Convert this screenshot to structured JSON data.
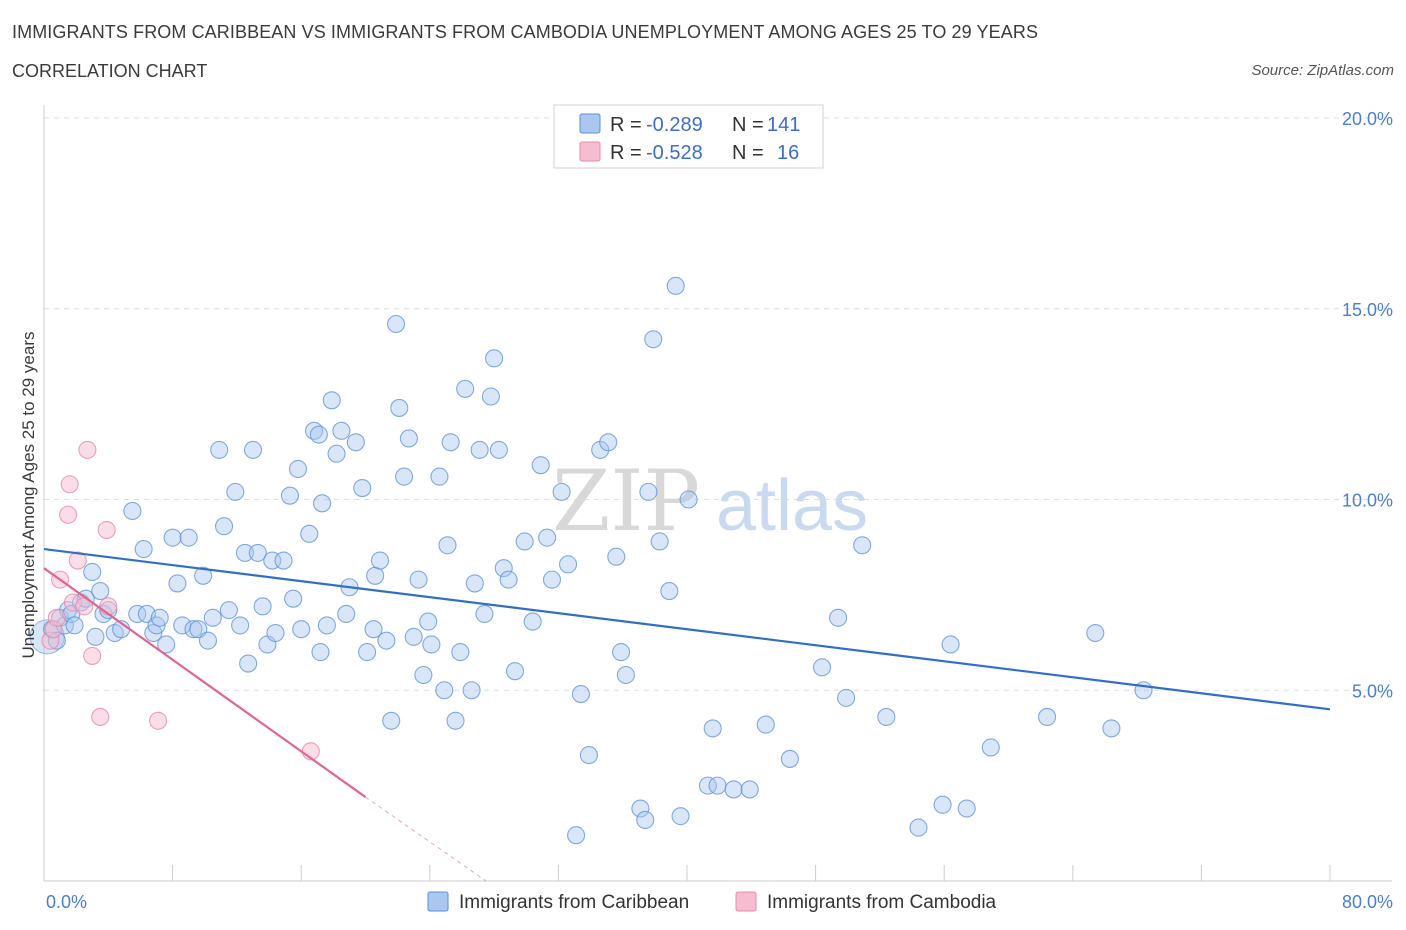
{
  "header": {
    "title": "IMMIGRANTS FROM CARIBBEAN VS IMMIGRANTS FROM CAMBODIA UNEMPLOYMENT AMONG AGES 25 TO 29 YEARS",
    "subtitle": "CORRELATION CHART",
    "source": "Source: ZipAtlas.com"
  },
  "watermark": {
    "zip": "ZIP",
    "atlas": "atlas"
  },
  "colors": {
    "caribbean_fill": "#a9c7ef",
    "caribbean_stroke": "#5b8fd6",
    "caribbean_line": "#2f6fc9",
    "cambodia_fill": "#f6bcd0",
    "cambodia_stroke": "#e88aa8",
    "cambodia_line": "#e0668f",
    "grid": "#dddddd",
    "axis_label": "#4a7fcf"
  },
  "legend": {
    "rows": [
      {
        "r_label": "R = ",
        "r_value": "-0.289",
        "n_label": "N = ",
        "n_value": "141"
      },
      {
        "r_label": "R = ",
        "r_value": "-0.528",
        "n_label": "N = ",
        "n_value": "16"
      }
    ]
  },
  "bottom_legend": {
    "items": [
      {
        "label": "Immigrants from Caribbean"
      },
      {
        "label": "Immigrants from Cambodia"
      }
    ]
  },
  "chart_data": {
    "type": "scatter",
    "title": "IMMIGRANTS FROM CARIBBEAN VS IMMIGRANTS FROM CAMBODIA UNEMPLOYMENT AMONG AGES 25 TO 29 YEARS",
    "xlabel": "",
    "ylabel": "Unemployment Among Ages 25 to 29 years",
    "xlim": [
      0,
      80
    ],
    "ylim": [
      0,
      20
    ],
    "x_tick_labels": [
      "0.0%",
      "80.0%"
    ],
    "y_ticks": [
      5,
      10,
      15,
      20
    ],
    "y_tick_labels": [
      "5.0%",
      "10.0%",
      "15.0%",
      "20.0%"
    ],
    "grid": true,
    "legend_position": "top-center",
    "series": [
      {
        "name": "Immigrants from Caribbean",
        "R": -0.289,
        "N": 141,
        "trend": {
          "x": [
            0,
            80
          ],
          "y": [
            8.7,
            4.5
          ]
        },
        "points": [
          [
            0.5,
            6.6
          ],
          [
            0.8,
            6.3
          ],
          [
            1.0,
            6.9
          ],
          [
            1.3,
            6.7
          ],
          [
            1.5,
            7.1
          ],
          [
            1.7,
            7.0
          ],
          [
            1.9,
            6.7
          ],
          [
            2.3,
            7.3
          ],
          [
            2.6,
            7.4
          ],
          [
            3.0,
            8.1
          ],
          [
            3.2,
            6.4
          ],
          [
            3.5,
            7.6
          ],
          [
            3.7,
            7.0
          ],
          [
            4.0,
            7.1
          ],
          [
            4.4,
            6.5
          ],
          [
            4.8,
            6.6
          ],
          [
            5.5,
            9.7
          ],
          [
            5.8,
            7.0
          ],
          [
            6.2,
            8.7
          ],
          [
            6.4,
            7.0
          ],
          [
            6.8,
            6.5
          ],
          [
            7.0,
            6.7
          ],
          [
            7.2,
            6.9
          ],
          [
            7.6,
            6.2
          ],
          [
            8.0,
            9.0
          ],
          [
            8.3,
            7.8
          ],
          [
            8.6,
            6.7
          ],
          [
            9.0,
            9.0
          ],
          [
            9.3,
            6.6
          ],
          [
            9.6,
            6.6
          ],
          [
            9.9,
            8.0
          ],
          [
            10.2,
            6.3
          ],
          [
            10.5,
            6.9
          ],
          [
            10.9,
            11.3
          ],
          [
            11.2,
            9.3
          ],
          [
            11.5,
            7.1
          ],
          [
            11.9,
            10.2
          ],
          [
            12.2,
            6.7
          ],
          [
            12.5,
            8.6
          ],
          [
            12.7,
            5.7
          ],
          [
            13.0,
            11.3
          ],
          [
            13.3,
            8.6
          ],
          [
            13.6,
            7.2
          ],
          [
            13.9,
            6.2
          ],
          [
            14.2,
            8.4
          ],
          [
            14.4,
            6.5
          ],
          [
            14.9,
            8.4
          ],
          [
            15.3,
            10.1
          ],
          [
            15.5,
            7.4
          ],
          [
            15.8,
            10.8
          ],
          [
            16.0,
            6.6
          ],
          [
            16.5,
            9.1
          ],
          [
            16.8,
            11.8
          ],
          [
            17.1,
            11.7
          ],
          [
            17.3,
            9.9
          ],
          [
            17.6,
            6.7
          ],
          [
            17.9,
            12.6
          ],
          [
            18.2,
            11.2
          ],
          [
            18.5,
            11.8
          ],
          [
            18.8,
            7.0
          ],
          [
            19.0,
            7.7
          ],
          [
            19.4,
            11.5
          ],
          [
            19.8,
            10.3
          ],
          [
            20.1,
            6.0
          ],
          [
            20.6,
            8.0
          ],
          [
            20.9,
            8.4
          ],
          [
            21.3,
            6.3
          ],
          [
            21.6,
            4.2
          ],
          [
            21.9,
            14.6
          ],
          [
            22.1,
            12.4
          ],
          [
            22.4,
            10.6
          ],
          [
            22.7,
            11.6
          ],
          [
            23.0,
            6.4
          ],
          [
            23.3,
            7.9
          ],
          [
            23.6,
            5.4
          ],
          [
            23.9,
            6.8
          ],
          [
            24.1,
            6.2
          ],
          [
            24.6,
            10.6
          ],
          [
            24.9,
            5.0
          ],
          [
            25.1,
            8.8
          ],
          [
            25.3,
            11.5
          ],
          [
            25.6,
            4.2
          ],
          [
            25.9,
            6.0
          ],
          [
            26.2,
            12.9
          ],
          [
            26.6,
            5.0
          ],
          [
            26.8,
            7.8
          ],
          [
            27.1,
            11.3
          ],
          [
            27.4,
            7.0
          ],
          [
            27.8,
            12.7
          ],
          [
            28.0,
            13.7
          ],
          [
            28.3,
            11.3
          ],
          [
            28.6,
            8.2
          ],
          [
            28.9,
            7.9
          ],
          [
            29.3,
            5.5
          ],
          [
            29.9,
            8.9
          ],
          [
            30.4,
            6.8
          ],
          [
            30.9,
            10.9
          ],
          [
            31.3,
            9.0
          ],
          [
            31.6,
            7.9
          ],
          [
            32.2,
            10.2
          ],
          [
            32.6,
            8.3
          ],
          [
            33.1,
            1.2
          ],
          [
            33.4,
            4.9
          ],
          [
            33.9,
            3.3
          ],
          [
            34.6,
            11.3
          ],
          [
            35.1,
            11.5
          ],
          [
            35.6,
            8.5
          ],
          [
            35.9,
            6.0
          ],
          [
            36.2,
            5.4
          ],
          [
            37.1,
            1.9
          ],
          [
            37.4,
            1.6
          ],
          [
            37.6,
            10.2
          ],
          [
            37.9,
            14.2
          ],
          [
            38.3,
            8.9
          ],
          [
            38.9,
            7.6
          ],
          [
            39.3,
            15.6
          ],
          [
            39.6,
            1.7
          ],
          [
            40.1,
            10.0
          ],
          [
            41.3,
            2.5
          ],
          [
            41.6,
            4.0
          ],
          [
            41.9,
            2.5
          ],
          [
            42.9,
            2.4
          ],
          [
            43.9,
            2.4
          ],
          [
            44.9,
            4.1
          ],
          [
            46.4,
            3.2
          ],
          [
            48.4,
            5.6
          ],
          [
            49.4,
            6.9
          ],
          [
            49.9,
            4.8
          ],
          [
            50.9,
            8.8
          ],
          [
            52.4,
            4.3
          ],
          [
            54.4,
            1.4
          ],
          [
            55.9,
            2.0
          ],
          [
            56.4,
            6.2
          ],
          [
            57.4,
            1.9
          ],
          [
            58.9,
            3.5
          ],
          [
            62.4,
            4.3
          ],
          [
            65.4,
            6.5
          ],
          [
            66.4,
            4.0
          ],
          [
            68.4,
            5.0
          ],
          [
            20.5,
            6.6
          ],
          [
            17.2,
            6.0
          ]
        ]
      },
      {
        "name": "Immigrants from Cambodia",
        "R": -0.528,
        "N": 16,
        "trend": {
          "x": [
            0,
            20
          ],
          "y": [
            8.2,
            2.2
          ],
          "dashed_to": {
            "x": 27.5,
            "y": 0
          }
        },
        "points": [
          [
            0.4,
            6.3
          ],
          [
            0.6,
            6.6
          ],
          [
            0.8,
            6.9
          ],
          [
            1.0,
            7.9
          ],
          [
            1.5,
            9.6
          ],
          [
            1.6,
            10.4
          ],
          [
            1.8,
            7.3
          ],
          [
            2.1,
            8.4
          ],
          [
            2.5,
            7.2
          ],
          [
            2.7,
            11.3
          ],
          [
            3.0,
            5.9
          ],
          [
            3.5,
            4.3
          ],
          [
            3.9,
            9.2
          ],
          [
            4.0,
            7.2
          ],
          [
            7.1,
            4.2
          ],
          [
            16.6,
            3.4
          ]
        ]
      }
    ]
  }
}
